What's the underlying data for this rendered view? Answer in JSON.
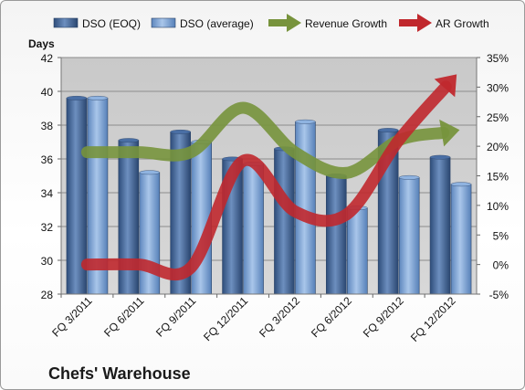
{
  "company": "Chefs' Warehouse",
  "chart_data": {
    "type": "bar",
    "ylabel": "Days",
    "ylim": [
      28,
      42
    ],
    "y_ticks": [
      "28",
      "30",
      "32",
      "34",
      "36",
      "38",
      "40",
      "42"
    ],
    "y2lim": [
      -5,
      35
    ],
    "y2_ticks": [
      "-5%",
      "0%",
      "5%",
      "10%",
      "15%",
      "20%",
      "25%",
      "30%",
      "35%"
    ],
    "grid": true,
    "legend": "top",
    "categories": [
      "FQ 3/2011",
      "FQ 6/2011",
      "FQ 9/2011",
      "FQ 12/2011",
      "FQ 3/2012",
      "FQ 6/2012",
      "FQ 9/2012",
      "FQ 12/2012"
    ],
    "series": [
      {
        "name": "DSO (EOQ)",
        "kind": "bar",
        "color": "#4a6fa5",
        "values": [
          39.6,
          37.1,
          37.6,
          36.0,
          36.6,
          35.0,
          37.7,
          36.1
        ]
      },
      {
        "name": "DSO (average)",
        "kind": "bar",
        "color": "#8fb3e0",
        "values": [
          39.6,
          35.2,
          37.0,
          35.7,
          38.2,
          33.1,
          34.9,
          34.5
        ]
      },
      {
        "name": "Revenue Growth",
        "kind": "line",
        "axis": "right",
        "color": "#77933c",
        "values": [
          19,
          19,
          19,
          26.5,
          19,
          15.5,
          21,
          22.5
        ]
      },
      {
        "name": "AR Growth",
        "kind": "line",
        "axis": "right",
        "color": "#c0282d",
        "values": [
          0,
          0,
          -0.5,
          17.5,
          9,
          8.5,
          21,
          31
        ]
      }
    ]
  }
}
